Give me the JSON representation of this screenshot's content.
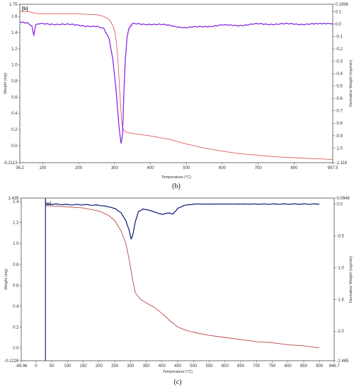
{
  "chart_data": [
    {
      "type": "line",
      "panel_label": "[b]",
      "caption": "(b)",
      "xlabel": "Temperature (°C)",
      "ylabel_left": "Weight (mg)",
      "ylabel_right": "Derivative Weight (mg/min)",
      "xlim": [
        36.2,
        907.5
      ],
      "ylim_left": [
        -0.2113,
        1.75
      ],
      "ylim_right": [
        -1.118,
        0.1596
      ],
      "x_ticks": [
        "36.2",
        "100",
        "200",
        "300",
        "400",
        "500",
        "600",
        "700",
        "800",
        "907.5"
      ],
      "y_left_ticks": [
        "1.75",
        "1.6",
        "1.4",
        "1.2",
        "1.0",
        "0.8",
        "0.6",
        "0.4",
        "0.2",
        "0.0",
        "-0.2113"
      ],
      "y_right_ticks": [
        "0.1596",
        "0.1",
        "0.0",
        "-0.1",
        "-0.2",
        "-0.3",
        "-0.4",
        "-0.5",
        "-0.6",
        "-0.7",
        "-0.8",
        "-0.9",
        "-1.0",
        "-1.118"
      ],
      "colors": {
        "weight": "#e05a5a",
        "derivative": "#8a2be2"
      },
      "series": [
        {
          "name": "Weight (mg)",
          "axis": "left",
          "x": [
            36.2,
            60,
            80,
            90,
            100,
            150,
            200,
            250,
            270,
            285,
            295,
            300,
            305,
            310,
            315,
            320,
            325,
            330,
            340,
            350,
            400,
            450,
            500,
            550,
            600,
            650,
            700,
            750,
            800,
            850,
            900,
            907.5
          ],
          "y": [
            1.66,
            1.66,
            1.64,
            1.63,
            1.63,
            1.63,
            1.63,
            1.62,
            1.6,
            1.56,
            1.49,
            1.42,
            1.28,
            1.02,
            0.62,
            0.28,
            0.19,
            0.17,
            0.16,
            0.15,
            0.12,
            0.08,
            0.02,
            -0.03,
            -0.07,
            -0.1,
            -0.12,
            -0.14,
            -0.15,
            -0.16,
            -0.17,
            -0.17
          ]
        },
        {
          "name": "Derivative Weight (mg/min)",
          "axis": "right",
          "x": [
            36.2,
            60,
            70,
            75,
            80,
            90,
            150,
            200,
            250,
            270,
            285,
            295,
            305,
            312,
            318,
            322,
            326,
            330,
            335,
            340,
            345,
            350,
            360,
            400,
            450,
            500,
            550,
            600,
            650,
            700,
            750,
            800,
            850,
            907.5
          ],
          "y": [
            0.02,
            0.01,
            -0.02,
            -0.09,
            -0.01,
            0.0,
            0.0,
            -0.01,
            -0.02,
            -0.04,
            -0.12,
            -0.28,
            -0.55,
            -0.82,
            -0.96,
            -0.9,
            -0.55,
            -0.28,
            -0.1,
            -0.04,
            -0.01,
            0.0,
            0.0,
            0.0,
            -0.01,
            -0.03,
            -0.02,
            -0.01,
            -0.01,
            0.0,
            0.0,
            0.0,
            0.0,
            0.0
          ]
        }
      ]
    },
    {
      "type": "line",
      "panel_label": "[c]",
      "caption": "(c)",
      "xlabel": "Temperature (°C)",
      "ylabel_left": "Weight (mg)",
      "ylabel_right": "Derivative Weight (mg/min)",
      "xlim": [
        -46.96,
        946.7
      ],
      "ylim_left": [
        -0.1226,
        1.435
      ],
      "ylim_right": [
        -2.465,
        0.0948
      ],
      "x_ticks": [
        "-46.96",
        "0",
        "50",
        "100",
        "150",
        "200",
        "250",
        "300",
        "350",
        "400",
        "450",
        "500",
        "550",
        "600",
        "650",
        "700",
        "750",
        "800",
        "850",
        "900",
        "946.7"
      ],
      "y_left_ticks": [
        "1.435",
        "1.4",
        "1.2",
        "1.0",
        "0.8",
        "0.6",
        "0.4",
        "0.2",
        "0.0",
        "-0.1226"
      ],
      "y_right_ticks": [
        "0.0948",
        "0.0",
        "-0.5",
        "-1.0",
        "-1.5",
        "-2.0",
        "-2.465"
      ],
      "colors": {
        "weight": "#b84545",
        "derivative": "#1a237e"
      },
      "series": [
        {
          "name": "Weight (mg)",
          "axis": "left",
          "x": [
            30,
            50,
            100,
            150,
            200,
            230,
            250,
            270,
            285,
            295,
            305,
            315,
            330,
            350,
            375,
            400,
            425,
            450,
            475,
            500,
            550,
            600,
            650,
            700,
            750,
            800,
            850,
            900
          ],
          "y": [
            1.36,
            1.36,
            1.35,
            1.34,
            1.31,
            1.27,
            1.22,
            1.12,
            1.0,
            0.86,
            0.68,
            0.53,
            0.47,
            0.43,
            0.39,
            0.33,
            0.26,
            0.2,
            0.17,
            0.15,
            0.12,
            0.1,
            0.08,
            0.06,
            0.05,
            0.03,
            0.02,
            0.0
          ]
        },
        {
          "name": "Derivative Weight (mg/min)",
          "axis": "right",
          "x": [
            30,
            50,
            100,
            150,
            200,
            230,
            250,
            270,
            285,
            295,
            302,
            308,
            315,
            325,
            340,
            360,
            380,
            400,
            420,
            435,
            450,
            470,
            500,
            600,
            700,
            800,
            900
          ],
          "y": [
            0.0,
            0.0,
            -0.01,
            -0.01,
            -0.02,
            -0.04,
            -0.07,
            -0.14,
            -0.26,
            -0.4,
            -0.55,
            -0.47,
            -0.28,
            -0.12,
            -0.08,
            -0.1,
            -0.13,
            -0.16,
            -0.14,
            -0.16,
            -0.07,
            -0.02,
            0.0,
            0.0,
            0.0,
            0.0,
            0.0
          ]
        }
      ]
    }
  ]
}
